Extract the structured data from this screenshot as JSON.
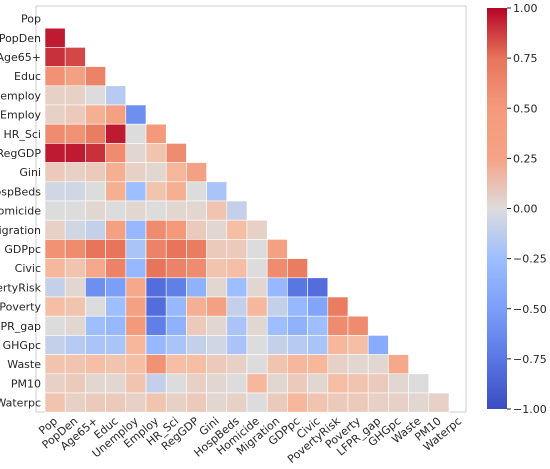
{
  "chart_data": {
    "type": "heatmap",
    "title": "",
    "subtitle": "",
    "xlabel": "",
    "ylabel": "",
    "variables": [
      "Pop",
      "PopDen",
      "Age65+",
      "Educ",
      "Unemploy",
      "Employ",
      "HR_Sci",
      "RegGDP",
      "Gini",
      "HospBeds",
      "Homicide",
      "Migration",
      "GDPpc",
      "Civic",
      "PovertyRisk",
      "Poverty",
      "LFPR_gap",
      "GHGpc",
      "Waste",
      "PM10",
      "Waterpc"
    ],
    "x_tick_labels": [
      "Pop",
      "PopDen",
      "Age65+",
      "Educ",
      "Unemploy",
      "Employ",
      "HR_Sci",
      "RegGDP",
      "Gini",
      "HospBeds",
      "Homicide",
      "Migration",
      "GDPpc",
      "Civic",
      "PovertyRisk",
      "Poverty",
      "LFPR_gap",
      "GHGpc",
      "Waste",
      "PM10",
      "Waterpc"
    ],
    "y_tick_labels": [
      "Pop",
      "PopDen",
      "Age65+",
      "Educ",
      "Unemploy",
      "Employ",
      "HR_Sci",
      "RegGDP",
      "Gini",
      "HospBeds",
      "Homicide",
      "Migration",
      "GDPpc",
      "Civic",
      "PovertyRisk",
      "Poverty",
      "LFPR_gap",
      "GHGpc",
      "Waste",
      "PM10",
      "Waterpc"
    ],
    "mask": "upper triangle and diagonal hidden",
    "colormap": "coolwarm",
    "vmin": -1,
    "vmax": 1,
    "grid": true,
    "colorbar": {
      "position": "right",
      "ticks": [
        1.0,
        0.75,
        0.5,
        0.25,
        0.0,
        -0.25,
        -0.5,
        -0.75,
        -1.0
      ],
      "tick_labels": [
        "1.00",
        "0.75",
        "0.50",
        "0.25",
        "0.00",
        "−0.25",
        "−0.50",
        "−0.75",
        "−1.00"
      ]
    },
    "matrix": [
      [],
      [
        0.95
      ],
      [
        0.9,
        0.85
      ],
      [
        0.55,
        0.45,
        0.65
      ],
      [
        0.1,
        0.1,
        0.0,
        -0.15
      ],
      [
        0.1,
        0.15,
        0.35,
        0.45,
        -0.6
      ],
      [
        0.6,
        0.55,
        0.7,
        0.95,
        0.0,
        0.5
      ],
      [
        0.95,
        0.95,
        0.9,
        0.6,
        0.05,
        0.2,
        0.6
      ],
      [
        0.15,
        0.1,
        0.15,
        0.35,
        0.1,
        0.05,
        0.3,
        0.45
      ],
      [
        -0.05,
        -0.05,
        0.0,
        0.35,
        -0.25,
        0.2,
        0.35,
        0.0,
        -0.2
      ],
      [
        0.0,
        0.0,
        0.05,
        0.0,
        0.05,
        0.0,
        0.05,
        0.05,
        0.2,
        -0.1
      ],
      [
        0.1,
        -0.05,
        -0.1,
        0.45,
        -0.3,
        0.6,
        0.5,
        0.15,
        0.05,
        0.25,
        0.1
      ],
      [
        0.55,
        0.6,
        0.75,
        0.75,
        -0.2,
        0.65,
        0.75,
        0.7,
        0.15,
        0.15,
        0.0,
        0.45
      ],
      [
        0.3,
        0.2,
        0.4,
        0.65,
        -0.3,
        0.75,
        0.65,
        0.6,
        0.2,
        0.25,
        0.0,
        0.6,
        0.7
      ],
      [
        -0.1,
        0.05,
        -0.6,
        -0.5,
        0.4,
        -0.8,
        -0.7,
        -0.35,
        0.05,
        -0.25,
        0.05,
        -0.3,
        -0.75,
        -0.8
      ],
      [
        0.25,
        0.2,
        0.0,
        -0.25,
        0.45,
        -0.8,
        -0.3,
        0.35,
        0.45,
        -0.1,
        0.3,
        -0.1,
        -0.3,
        -0.45,
        0.7
      ],
      [
        0.0,
        0.05,
        -0.25,
        -0.3,
        0.5,
        -0.7,
        -0.35,
        0.15,
        0.05,
        -0.2,
        0.05,
        -0.25,
        -0.35,
        -0.25,
        0.6,
        0.6
      ],
      [
        -0.1,
        -0.15,
        -0.2,
        -0.2,
        0.3,
        -0.3,
        -0.2,
        -0.1,
        -0.05,
        -0.2,
        0.0,
        -0.1,
        -0.15,
        -0.2,
        0.3,
        0.25,
        -0.4
      ],
      [
        0.2,
        0.2,
        0.25,
        0.2,
        0.25,
        0.55,
        0.25,
        0.25,
        0.15,
        0.1,
        0.0,
        0.2,
        0.3,
        0.3,
        0.1,
        0.05,
        0.05,
        0.4
      ],
      [
        0.1,
        0.15,
        0.05,
        0.05,
        0.2,
        -0.1,
        0.0,
        0.1,
        0.05,
        0.0,
        0.3,
        0.05,
        0.15,
        0.05,
        0.25,
        0.2,
        0.15,
        0.05,
        0.0
      ],
      [
        0.2,
        0.1,
        0.15,
        0.15,
        0.1,
        0.2,
        0.1,
        0.15,
        0.05,
        0.1,
        0.0,
        0.15,
        0.3,
        0.2,
        0.15,
        0.15,
        0.1,
        0.1,
        0.05,
        0.1
      ]
    ]
  }
}
